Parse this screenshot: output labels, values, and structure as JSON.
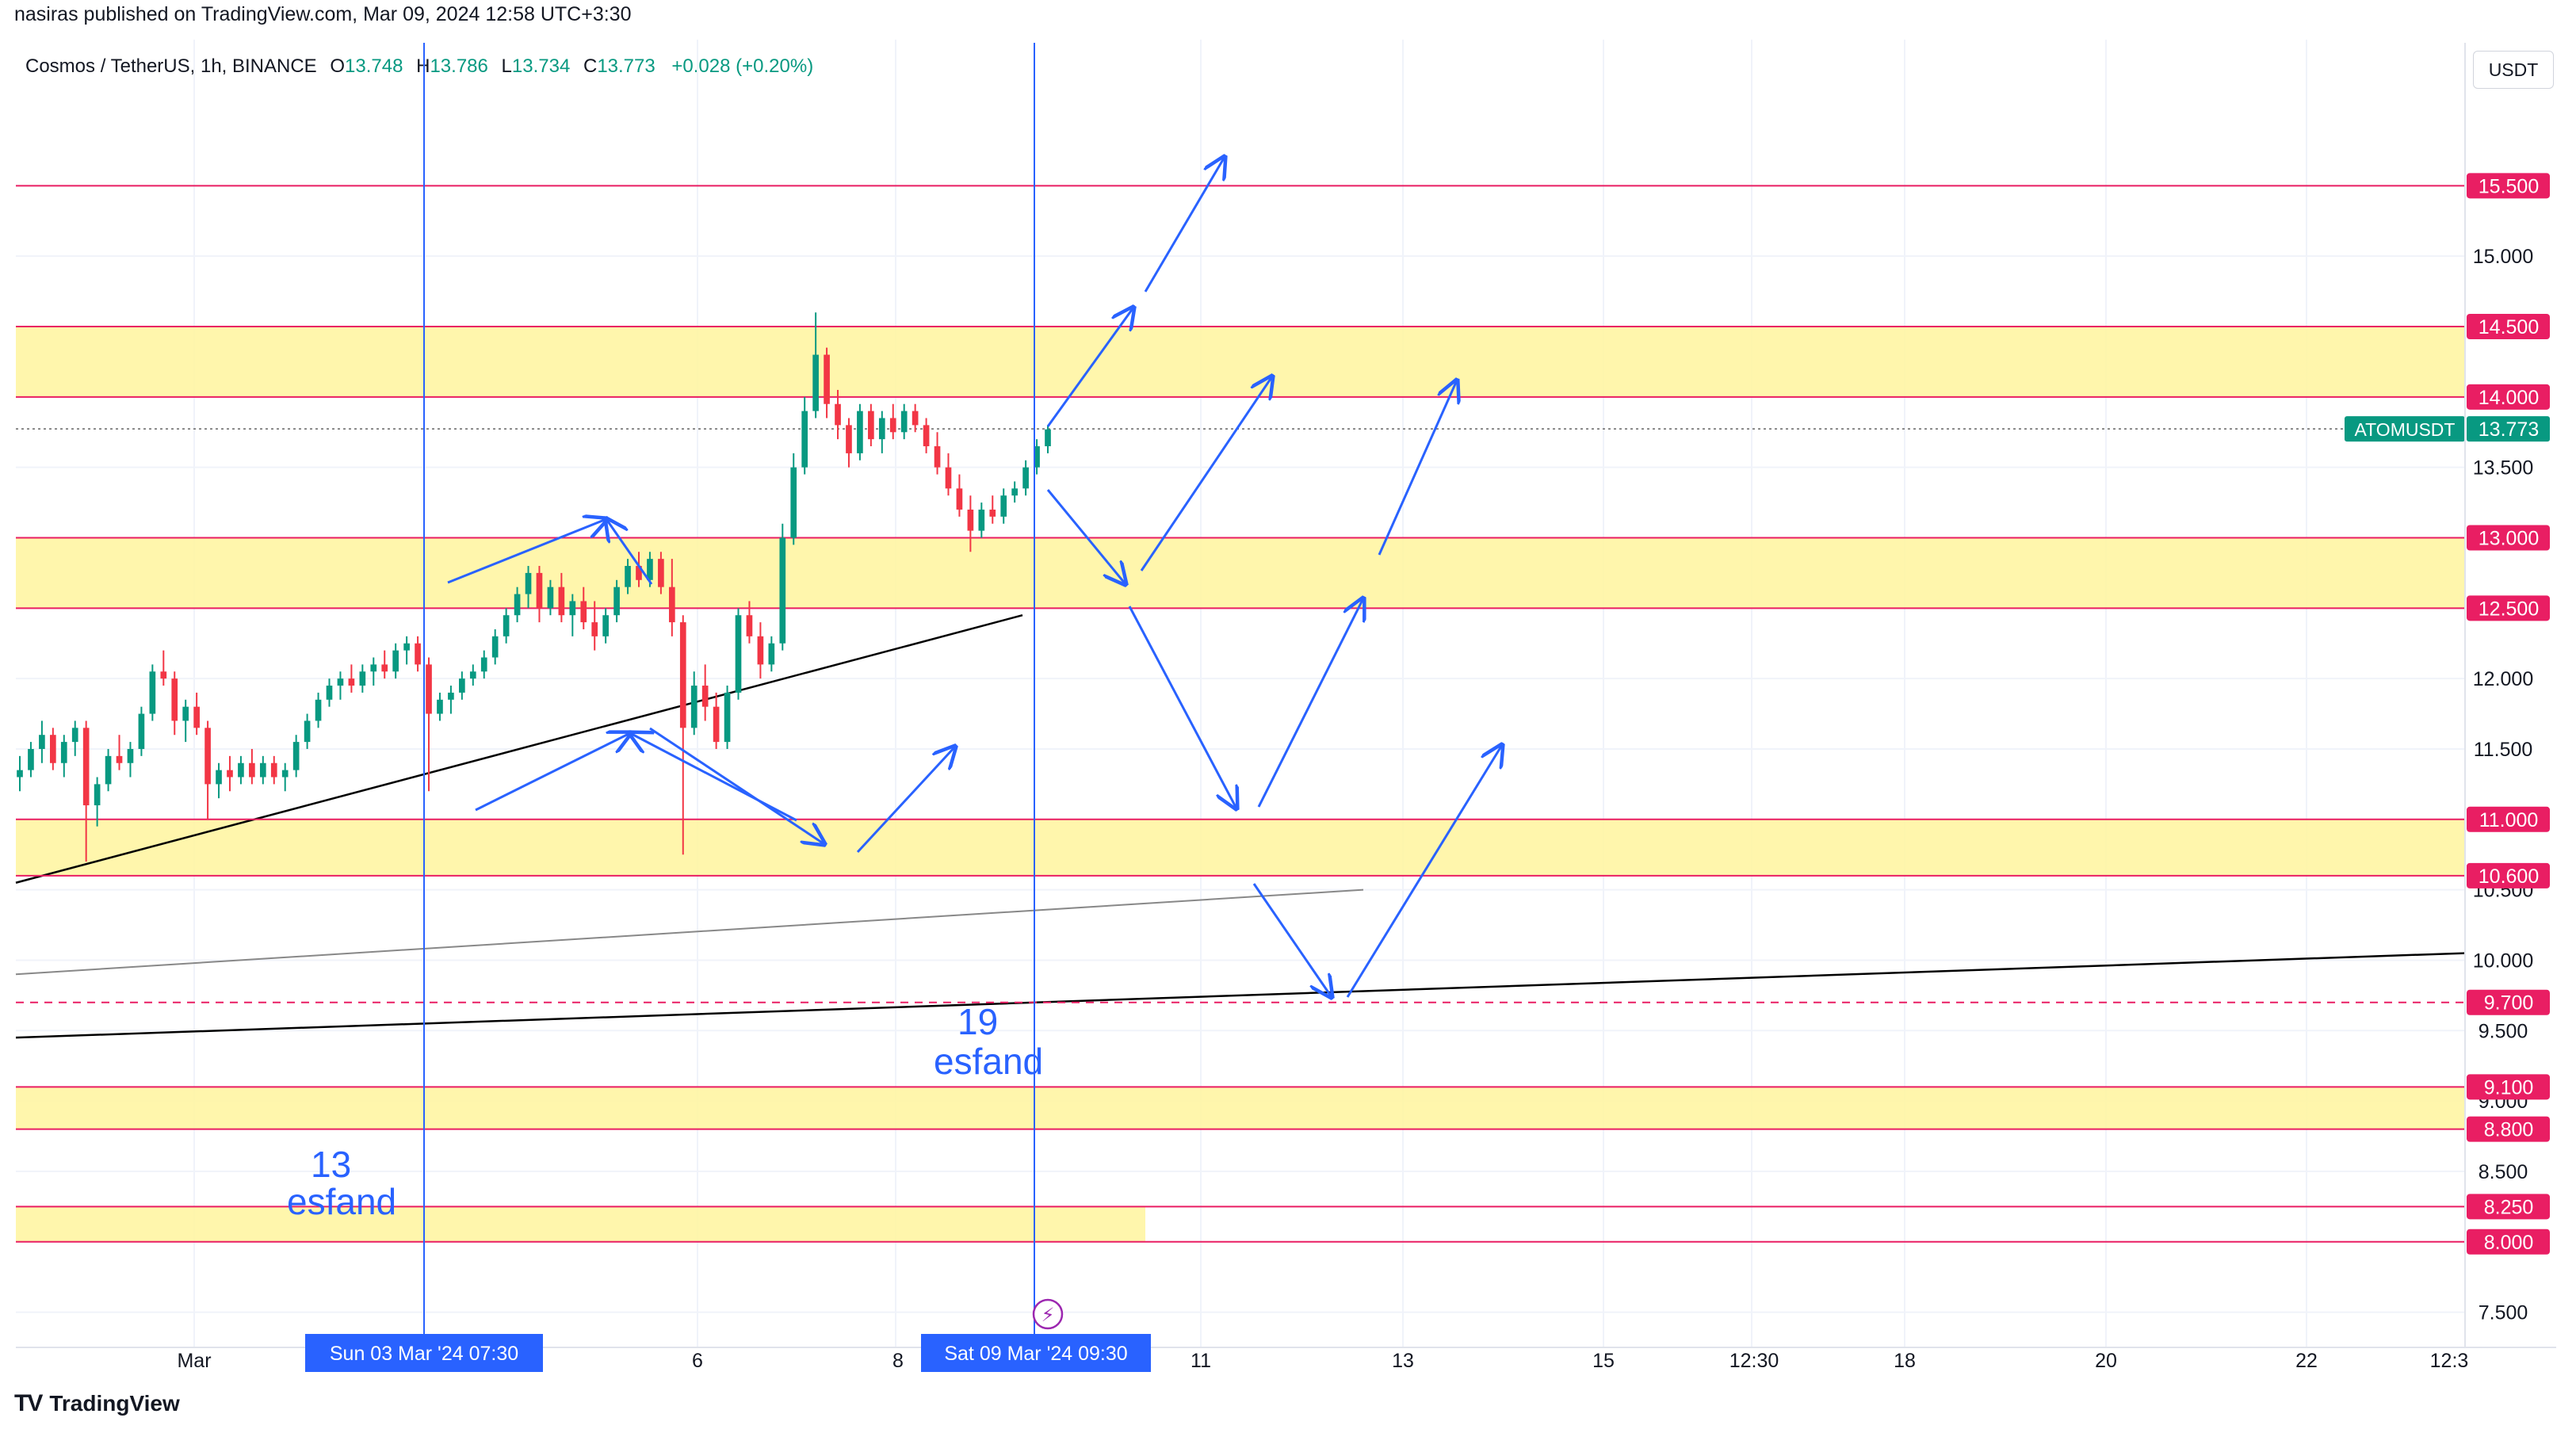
{
  "header": {
    "published": "nasiras published on TradingView.com, Mar 09, 2024 12:58 UTC+3:30"
  },
  "legend": {
    "symbol": "Cosmos / TetherUS, 1h, BINANCE",
    "o_label": "O",
    "o": "13.748",
    "h_label": "H",
    "h": "13.786",
    "l_label": "L",
    "l": "13.734",
    "c_label": "C",
    "c": "13.773",
    "change": "+0.028 (+0.20%)"
  },
  "currency_button": "USDT",
  "footer": {
    "logo": "TV",
    "brand": "TradingView"
  },
  "colors": {
    "up": "#089981",
    "down": "#f23645",
    "level_line": "#e91e63",
    "zone_fill": "#fff59d",
    "arrow": "#2962ff",
    "vline": "#2962ff"
  },
  "chart_data": {
    "type": "candlestick",
    "symbol": "ATOMUSDT",
    "timeframe": "1h",
    "ylim": [
      7.25,
      16.2
    ],
    "yticks": [
      "7.500",
      "8.500",
      "9.000",
      "9.500",
      "10.000",
      "10.500",
      "11.500",
      "12.000",
      "13.500",
      "15.000"
    ],
    "xticks": [
      "Mar",
      "6",
      "8",
      "11",
      "13",
      "15",
      "12:30",
      "18",
      "20",
      "22",
      "12:3"
    ],
    "current_price": {
      "label": "ATOMUSDT",
      "value": 13.773,
      "text": "13.773"
    },
    "levels": [
      {
        "value": 15.5,
        "text": "15.500",
        "style": "solid"
      },
      {
        "value": 14.5,
        "text": "14.500",
        "style": "solid"
      },
      {
        "value": 14.0,
        "text": "14.000",
        "style": "solid"
      },
      {
        "value": 13.0,
        "text": "13.000",
        "style": "solid"
      },
      {
        "value": 12.5,
        "text": "12.500",
        "style": "solid"
      },
      {
        "value": 11.0,
        "text": "11.000",
        "style": "solid"
      },
      {
        "value": 10.6,
        "text": "10.600",
        "style": "solid"
      },
      {
        "value": 9.7,
        "text": "9.700",
        "style": "dashed"
      },
      {
        "value": 9.1,
        "text": "9.100",
        "style": "solid"
      },
      {
        "value": 8.8,
        "text": "8.800",
        "style": "solid"
      },
      {
        "value": 8.25,
        "text": "8.250",
        "style": "solid"
      },
      {
        "value": 8.0,
        "text": "8.000",
        "style": "solid"
      }
    ],
    "zones": [
      {
        "from": 14.0,
        "to": 14.5
      },
      {
        "from": 12.5,
        "to": 13.0
      },
      {
        "from": 10.6,
        "to": 11.0
      },
      {
        "from": 8.8,
        "to": 9.1
      },
      {
        "from": 8.0,
        "to": 8.25
      }
    ],
    "markers": [
      {
        "date": "Sun 03 Mar '24",
        "time": "07:30",
        "note_number": "13",
        "note_word": "esfand"
      },
      {
        "date": "Sat 09 Mar '24",
        "time": "09:30",
        "note_number": "19",
        "note_word": "esfand"
      }
    ],
    "candles": [
      {
        "o": 11.3,
        "h": 11.45,
        "l": 11.2,
        "c": 11.35
      },
      {
        "o": 11.35,
        "h": 11.55,
        "l": 11.3,
        "c": 11.5
      },
      {
        "o": 11.5,
        "h": 11.7,
        "l": 11.4,
        "c": 11.6
      },
      {
        "o": 11.6,
        "h": 11.65,
        "l": 11.35,
        "c": 11.4
      },
      {
        "o": 11.4,
        "h": 11.6,
        "l": 11.3,
        "c": 11.55
      },
      {
        "o": 11.55,
        "h": 11.7,
        "l": 11.45,
        "c": 11.65
      },
      {
        "o": 11.65,
        "h": 11.7,
        "l": 10.7,
        "c": 11.1
      },
      {
        "o": 11.1,
        "h": 11.3,
        "l": 10.95,
        "c": 11.25
      },
      {
        "o": 11.25,
        "h": 11.5,
        "l": 11.2,
        "c": 11.45
      },
      {
        "o": 11.45,
        "h": 11.6,
        "l": 11.35,
        "c": 11.4
      },
      {
        "o": 11.4,
        "h": 11.55,
        "l": 11.3,
        "c": 11.5
      },
      {
        "o": 11.5,
        "h": 11.8,
        "l": 11.45,
        "c": 11.75
      },
      {
        "o": 11.75,
        "h": 12.1,
        "l": 11.7,
        "c": 12.05
      },
      {
        "o": 12.05,
        "h": 12.2,
        "l": 11.95,
        "c": 12.0
      },
      {
        "o": 12.0,
        "h": 12.05,
        "l": 11.6,
        "c": 11.7
      },
      {
        "o": 11.7,
        "h": 11.85,
        "l": 11.55,
        "c": 11.8
      },
      {
        "o": 11.8,
        "h": 11.9,
        "l": 11.6,
        "c": 11.65
      },
      {
        "o": 11.65,
        "h": 11.7,
        "l": 11.0,
        "c": 11.25
      },
      {
        "o": 11.25,
        "h": 11.4,
        "l": 11.15,
        "c": 11.35
      },
      {
        "o": 11.35,
        "h": 11.45,
        "l": 11.2,
        "c": 11.3
      },
      {
        "o": 11.3,
        "h": 11.45,
        "l": 11.25,
        "c": 11.4
      },
      {
        "o": 11.4,
        "h": 11.5,
        "l": 11.25,
        "c": 11.3
      },
      {
        "o": 11.3,
        "h": 11.45,
        "l": 11.25,
        "c": 11.4
      },
      {
        "o": 11.4,
        "h": 11.45,
        "l": 11.25,
        "c": 11.3
      },
      {
        "o": 11.3,
        "h": 11.4,
        "l": 11.2,
        "c": 11.35
      },
      {
        "o": 11.35,
        "h": 11.6,
        "l": 11.3,
        "c": 11.55
      },
      {
        "o": 11.55,
        "h": 11.75,
        "l": 11.5,
        "c": 11.7
      },
      {
        "o": 11.7,
        "h": 11.9,
        "l": 11.65,
        "c": 11.85
      },
      {
        "o": 11.85,
        "h": 12.0,
        "l": 11.8,
        "c": 11.95
      },
      {
        "o": 11.95,
        "h": 12.05,
        "l": 11.85,
        "c": 12.0
      },
      {
        "o": 12.0,
        "h": 12.1,
        "l": 11.9,
        "c": 11.95
      },
      {
        "o": 11.95,
        "h": 12.1,
        "l": 11.9,
        "c": 12.05
      },
      {
        "o": 12.05,
        "h": 12.15,
        "l": 11.95,
        "c": 12.1
      },
      {
        "o": 12.1,
        "h": 12.2,
        "l": 12.0,
        "c": 12.05
      },
      {
        "o": 12.05,
        "h": 12.25,
        "l": 12.0,
        "c": 12.2
      },
      {
        "o": 12.2,
        "h": 12.3,
        "l": 12.1,
        "c": 12.25
      },
      {
        "o": 12.25,
        "h": 12.3,
        "l": 12.05,
        "c": 12.1
      },
      {
        "o": 12.1,
        "h": 12.15,
        "l": 11.2,
        "c": 11.75
      },
      {
        "o": 11.75,
        "h": 11.9,
        "l": 11.7,
        "c": 11.85
      },
      {
        "o": 11.85,
        "h": 11.95,
        "l": 11.75,
        "c": 11.9
      },
      {
        "o": 11.9,
        "h": 12.05,
        "l": 11.85,
        "c": 12.0
      },
      {
        "o": 12.0,
        "h": 12.1,
        "l": 11.95,
        "c": 12.05
      },
      {
        "o": 12.05,
        "h": 12.2,
        "l": 12.0,
        "c": 12.15
      },
      {
        "o": 12.15,
        "h": 12.35,
        "l": 12.1,
        "c": 12.3
      },
      {
        "o": 12.3,
        "h": 12.5,
        "l": 12.25,
        "c": 12.45
      },
      {
        "o": 12.45,
        "h": 12.65,
        "l": 12.4,
        "c": 12.6
      },
      {
        "o": 12.6,
        "h": 12.8,
        "l": 12.5,
        "c": 12.75
      },
      {
        "o": 12.75,
        "h": 12.8,
        "l": 12.4,
        "c": 12.5
      },
      {
        "o": 12.5,
        "h": 12.7,
        "l": 12.45,
        "c": 12.65
      },
      {
        "o": 12.65,
        "h": 12.75,
        "l": 12.4,
        "c": 12.45
      },
      {
        "o": 12.45,
        "h": 12.6,
        "l": 12.3,
        "c": 12.55
      },
      {
        "o": 12.55,
        "h": 12.65,
        "l": 12.35,
        "c": 12.4
      },
      {
        "o": 12.4,
        "h": 12.55,
        "l": 12.2,
        "c": 12.3
      },
      {
        "o": 12.3,
        "h": 12.5,
        "l": 12.25,
        "c": 12.45
      },
      {
        "o": 12.45,
        "h": 12.7,
        "l": 12.4,
        "c": 12.65
      },
      {
        "o": 12.65,
        "h": 12.85,
        "l": 12.6,
        "c": 12.8
      },
      {
        "o": 12.8,
        "h": 12.9,
        "l": 12.65,
        "c": 12.7
      },
      {
        "o": 12.7,
        "h": 12.9,
        "l": 12.65,
        "c": 12.85
      },
      {
        "o": 12.85,
        "h": 12.9,
        "l": 12.6,
        "c": 12.65
      },
      {
        "o": 12.65,
        "h": 12.85,
        "l": 12.3,
        "c": 12.4
      },
      {
        "o": 12.4,
        "h": 12.45,
        "l": 10.75,
        "c": 11.65
      },
      {
        "o": 11.65,
        "h": 12.05,
        "l": 11.6,
        "c": 11.95
      },
      {
        "o": 11.95,
        "h": 12.1,
        "l": 11.7,
        "c": 11.8
      },
      {
        "o": 11.8,
        "h": 11.9,
        "l": 11.5,
        "c": 11.55
      },
      {
        "o": 11.55,
        "h": 11.95,
        "l": 11.5,
        "c": 11.9
      },
      {
        "o": 11.9,
        "h": 12.5,
        "l": 11.85,
        "c": 12.45
      },
      {
        "o": 12.45,
        "h": 12.55,
        "l": 12.25,
        "c": 12.3
      },
      {
        "o": 12.3,
        "h": 12.4,
        "l": 12.0,
        "c": 12.1
      },
      {
        "o": 12.1,
        "h": 12.3,
        "l": 12.05,
        "c": 12.25
      },
      {
        "o": 12.25,
        "h": 13.1,
        "l": 12.2,
        "c": 13.0
      },
      {
        "o": 13.0,
        "h": 13.6,
        "l": 12.95,
        "c": 13.5
      },
      {
        "o": 13.5,
        "h": 14.0,
        "l": 13.45,
        "c": 13.9
      },
      {
        "o": 13.9,
        "h": 14.6,
        "l": 13.85,
        "c": 14.3
      },
      {
        "o": 14.3,
        "h": 14.35,
        "l": 13.85,
        "c": 13.95
      },
      {
        "o": 13.95,
        "h": 14.05,
        "l": 13.7,
        "c": 13.8
      },
      {
        "o": 13.8,
        "h": 13.85,
        "l": 13.5,
        "c": 13.6
      },
      {
        "o": 13.6,
        "h": 13.95,
        "l": 13.55,
        "c": 13.9
      },
      {
        "o": 13.9,
        "h": 13.95,
        "l": 13.65,
        "c": 13.7
      },
      {
        "o": 13.7,
        "h": 13.9,
        "l": 13.6,
        "c": 13.85
      },
      {
        "o": 13.85,
        "h": 13.95,
        "l": 13.7,
        "c": 13.75
      },
      {
        "o": 13.75,
        "h": 13.95,
        "l": 13.7,
        "c": 13.9
      },
      {
        "o": 13.9,
        "h": 13.95,
        "l": 13.75,
        "c": 13.8
      },
      {
        "o": 13.8,
        "h": 13.85,
        "l": 13.6,
        "c": 13.65
      },
      {
        "o": 13.65,
        "h": 13.75,
        "l": 13.45,
        "c": 13.5
      },
      {
        "o": 13.5,
        "h": 13.6,
        "l": 13.3,
        "c": 13.35
      },
      {
        "o": 13.35,
        "h": 13.45,
        "l": 13.15,
        "c": 13.2
      },
      {
        "o": 13.2,
        "h": 13.3,
        "l": 12.9,
        "c": 13.05
      },
      {
        "o": 13.05,
        "h": 13.25,
        "l": 13.0,
        "c": 13.2
      },
      {
        "o": 13.2,
        "h": 13.3,
        "l": 13.1,
        "c": 13.15
      },
      {
        "o": 13.15,
        "h": 13.35,
        "l": 13.1,
        "c": 13.3
      },
      {
        "o": 13.3,
        "h": 13.4,
        "l": 13.25,
        "c": 13.35
      },
      {
        "o": 13.35,
        "h": 13.55,
        "l": 13.3,
        "c": 13.5
      },
      {
        "o": 13.5,
        "h": 13.7,
        "l": 13.45,
        "c": 13.65
      },
      {
        "o": 13.65,
        "h": 13.8,
        "l": 13.6,
        "c": 13.77
      }
    ]
  }
}
